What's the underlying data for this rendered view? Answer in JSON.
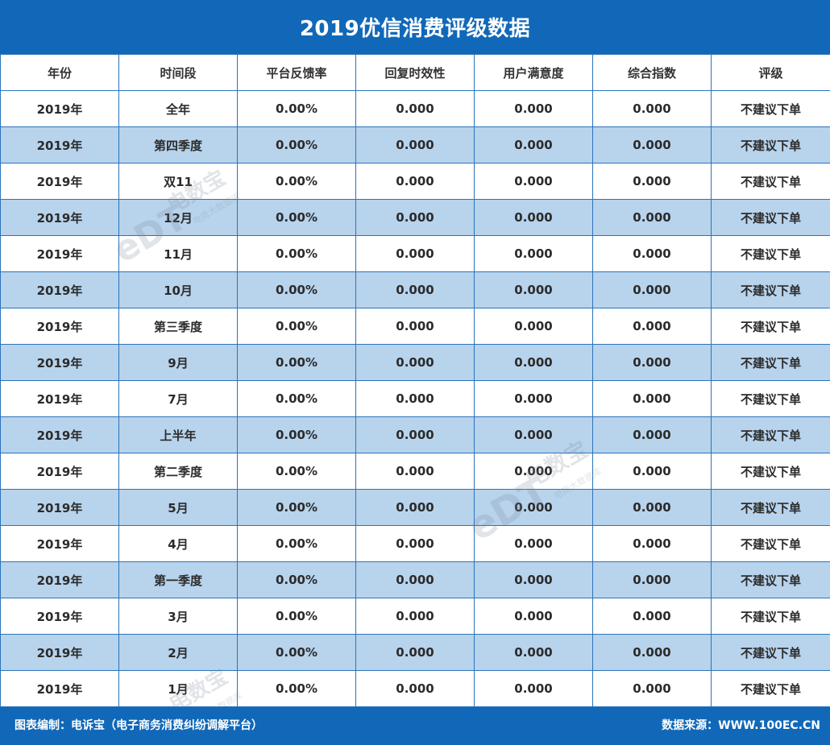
{
  "title": "2019优信消费评级数据",
  "chart_data": {
    "type": "table",
    "title": "2019优信消费评级数据",
    "columns": [
      "年份",
      "时间段",
      "平台反馈率",
      "回复时效性",
      "用户满意度",
      "综合指数",
      "评级"
    ],
    "rows": [
      [
        "2019年",
        "全年",
        "0.00%",
        "0.000",
        "0.000",
        "0.000",
        "不建议下单"
      ],
      [
        "2019年",
        "第四季度",
        "0.00%",
        "0.000",
        "0.000",
        "0.000",
        "不建议下单"
      ],
      [
        "2019年",
        "双11",
        "0.00%",
        "0.000",
        "0.000",
        "0.000",
        "不建议下单"
      ],
      [
        "2019年",
        "12月",
        "0.00%",
        "0.000",
        "0.000",
        "0.000",
        "不建议下单"
      ],
      [
        "2019年",
        "11月",
        "0.00%",
        "0.000",
        "0.000",
        "0.000",
        "不建议下单"
      ],
      [
        "2019年",
        "10月",
        "0.00%",
        "0.000",
        "0.000",
        "0.000",
        "不建议下单"
      ],
      [
        "2019年",
        "第三季度",
        "0.00%",
        "0.000",
        "0.000",
        "0.000",
        "不建议下单"
      ],
      [
        "2019年",
        "9月",
        "0.00%",
        "0.000",
        "0.000",
        "0.000",
        "不建议下单"
      ],
      [
        "2019年",
        "7月",
        "0.00%",
        "0.000",
        "0.000",
        "0.000",
        "不建议下单"
      ],
      [
        "2019年",
        "上半年",
        "0.00%",
        "0.000",
        "0.000",
        "0.000",
        "不建议下单"
      ],
      [
        "2019年",
        "第二季度",
        "0.00%",
        "0.000",
        "0.000",
        "0.000",
        "不建议下单"
      ],
      [
        "2019年",
        "5月",
        "0.00%",
        "0.000",
        "0.000",
        "0.000",
        "不建议下单"
      ],
      [
        "2019年",
        "4月",
        "0.00%",
        "0.000",
        "0.000",
        "0.000",
        "不建议下单"
      ],
      [
        "2019年",
        "第一季度",
        "0.00%",
        "0.000",
        "0.000",
        "0.000",
        "不建议下单"
      ],
      [
        "2019年",
        "3月",
        "0.00%",
        "0.000",
        "0.000",
        "0.000",
        "不建议下单"
      ],
      [
        "2019年",
        "2月",
        "0.00%",
        "0.000",
        "0.000",
        "0.000",
        "不建议下单"
      ],
      [
        "2019年",
        "1月",
        "0.00%",
        "0.000",
        "0.000",
        "0.000",
        "不建议下单"
      ]
    ]
  },
  "footer": {
    "left": "图表编制：电诉宝（电子商务消费纠纷调解平台）",
    "right": "数据来源：WWW.100EC.CN"
  },
  "watermark": {
    "logo_text": "eDT",
    "brand": "电数宝",
    "tagline": "电商大数据库"
  },
  "colors": {
    "header_bg": "#1168b8",
    "row_stripe": "#b8d3ec",
    "border": "#2a74ba"
  }
}
